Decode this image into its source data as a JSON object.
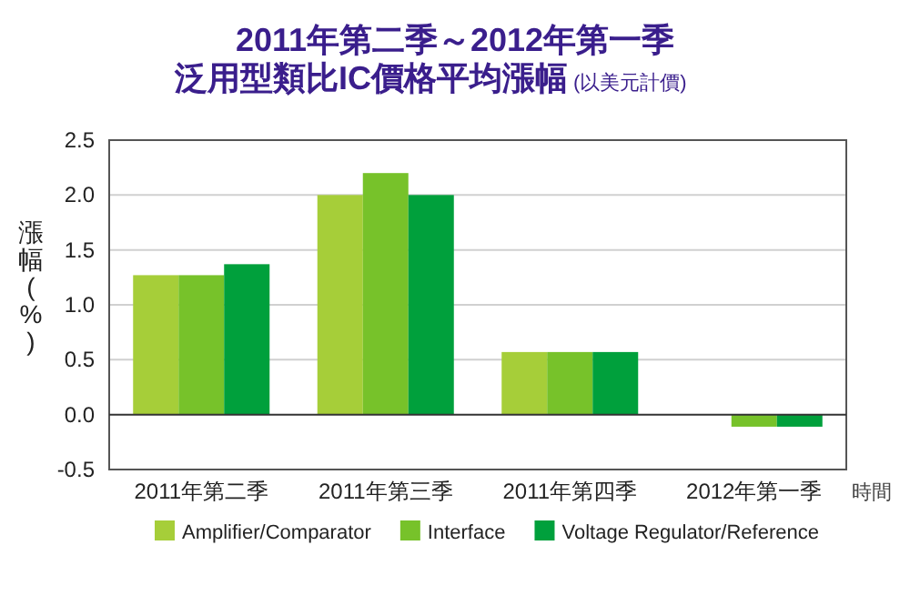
{
  "chart_data": {
    "type": "bar",
    "title": "2011年第二季～2012年第一季",
    "subtitle": "泛用型類比IC價格平均漲幅",
    "annotations": [
      "(以美元計價)"
    ],
    "ylabel": "漲幅(%)",
    "xlabel": "時間",
    "categories": [
      "2011年第二季",
      "2011年第三季",
      "2011年第四季",
      "2012年第一季"
    ],
    "series": [
      {
        "name": "Amplifier/Comparator",
        "color": "#a6ce39",
        "values": [
          1.27,
          2.0,
          0.57,
          null
        ]
      },
      {
        "name": "Interface",
        "color": "#77c22a",
        "values": [
          1.27,
          2.2,
          0.57,
          -0.11
        ]
      },
      {
        "name": "Voltage Regulator/Reference",
        "color": "#00a03c",
        "values": [
          1.37,
          2.0,
          0.57,
          -0.11
        ]
      }
    ],
    "ylim": [
      -0.5,
      2.5
    ],
    "yticks": [
      -0.5,
      {
        "value": 0,
        "label": "0.0"
      },
      0.5,
      {
        "value": 1,
        "label": "1.0"
      },
      1.5,
      {
        "value": 2,
        "label": "2.0"
      },
      2.5
    ],
    "grid": "y",
    "legend": "bottom"
  }
}
